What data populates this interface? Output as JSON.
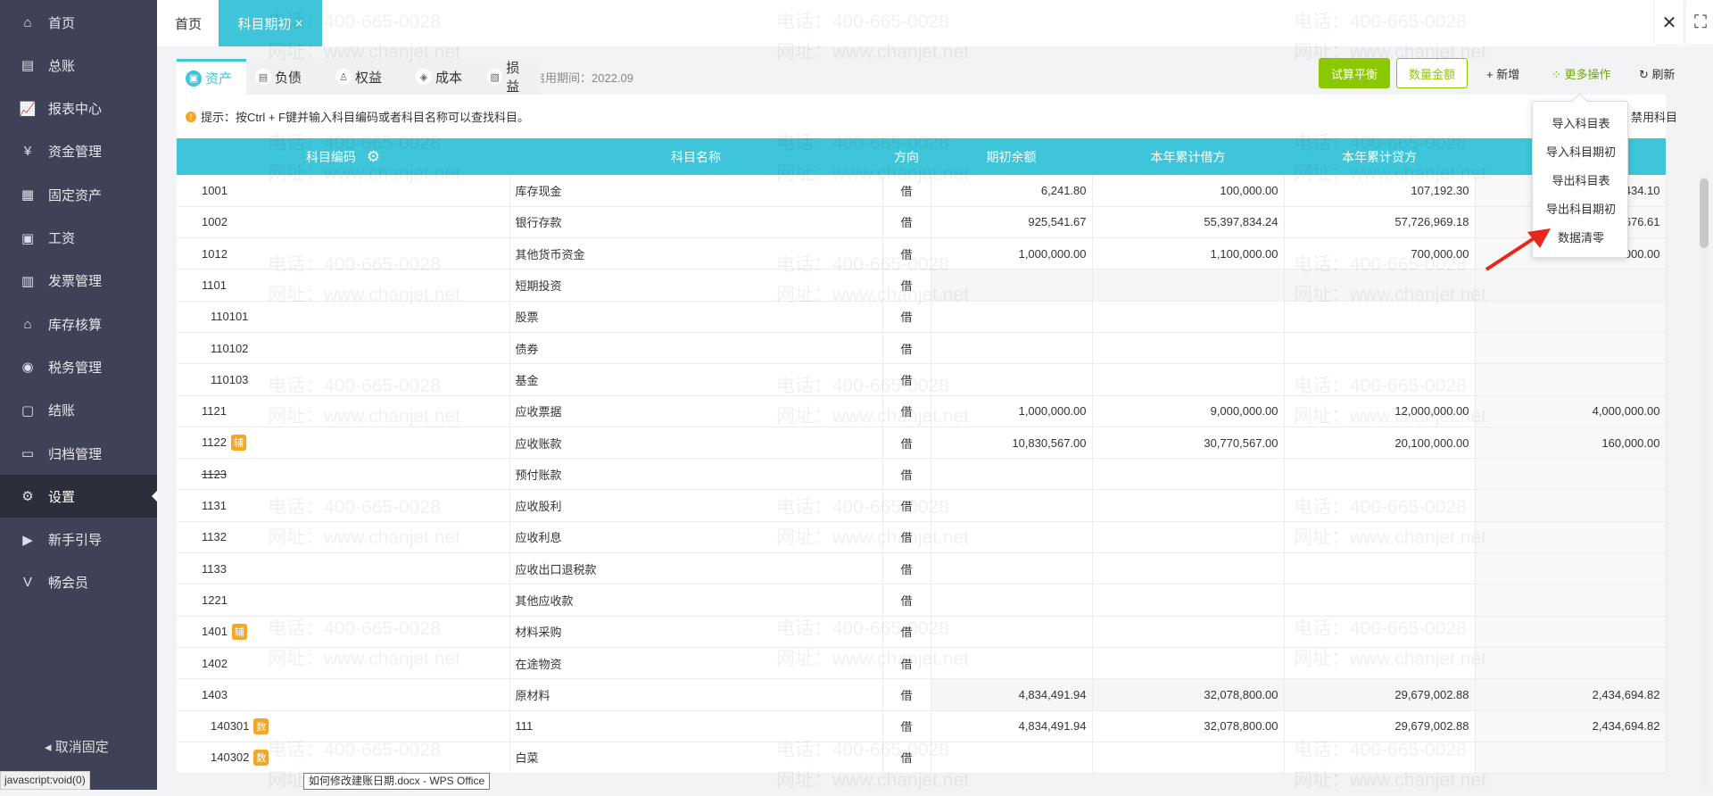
{
  "sidebar": {
    "items": [
      {
        "label": "首页",
        "icon": "home-icon",
        "glyph": "⌂"
      },
      {
        "label": "总账",
        "icon": "ledger-icon",
        "glyph": "▤"
      },
      {
        "label": "报表中心",
        "icon": "chart-icon",
        "glyph": "📈"
      },
      {
        "label": "资金管理",
        "icon": "money-bag-icon",
        "glyph": "¥"
      },
      {
        "label": "固定资产",
        "icon": "building-icon",
        "glyph": "▦"
      },
      {
        "label": "工资",
        "icon": "salary-icon",
        "glyph": "▣"
      },
      {
        "label": "发票管理",
        "icon": "invoice-icon",
        "glyph": "▥"
      },
      {
        "label": "库存核算",
        "icon": "warehouse-icon",
        "glyph": "⌂"
      },
      {
        "label": "税务管理",
        "icon": "tax-icon",
        "glyph": "◉"
      },
      {
        "label": "结账",
        "icon": "checkout-icon",
        "glyph": "▢"
      },
      {
        "label": "归档管理",
        "icon": "archive-icon",
        "glyph": "▭"
      },
      {
        "label": "设置",
        "icon": "gear-icon",
        "glyph": "⚙",
        "active": true
      },
      {
        "label": "新手引导",
        "icon": "video-icon",
        "glyph": "▶"
      },
      {
        "label": "畅会员",
        "icon": "vip-icon",
        "glyph": "V"
      }
    ],
    "unpin": "取消固定"
  },
  "tabs": {
    "home": "首页",
    "active": "科目期初",
    "close": "×"
  },
  "window": {
    "close": "✕",
    "fullscreen": "⛶"
  },
  "account_tabs": [
    {
      "label": "资产",
      "icon": "asset-icon",
      "active": true
    },
    {
      "label": "负债",
      "icon": "liability-icon"
    },
    {
      "label": "权益",
      "icon": "equity-icon"
    },
    {
      "label": "成本",
      "icon": "cost-icon"
    },
    {
      "label": "损益",
      "icon": "profit-loss-icon"
    }
  ],
  "period": "启用期间：2022.09",
  "toolbar": {
    "trial_balance": "试算平衡",
    "qty_amount": "数量金额",
    "add": "+ 新增",
    "more": "更多操作",
    "refresh": "刷新"
  },
  "hint": "提示：按Ctrl + F键并输入科目编码或者科目名称可以查找科目。",
  "disabled_label": "禁用科目",
  "dropdown": [
    "导入科目表",
    "导入科目期初",
    "导出科目表",
    "导出科目期初",
    "数据清零"
  ],
  "columns": [
    "科目编码",
    "科目名称",
    "方向",
    "期初余额",
    "本年累计借方",
    "本年累计贷方",
    ""
  ],
  "rows": [
    {
      "code": "1001",
      "name": "库存现金",
      "dir": "借",
      "bal": "6,241.80",
      "debit": "100,000.00",
      "credit": "107,192.30",
      "last": "434.10"
    },
    {
      "code": "1002",
      "name": "银行存款",
      "dir": "借",
      "bal": "925,541.67",
      "debit": "55,397,834.24",
      "credit": "57,726,969.18",
      "last": "676.61"
    },
    {
      "code": "1012",
      "name": "其他货币资金",
      "dir": "借",
      "bal": "1,000,000.00",
      "debit": "1,100,000.00",
      "credit": "700,000.00",
      "last": "000.00"
    },
    {
      "code": "1101",
      "name": "短期投资",
      "dir": "借",
      "shade": true
    },
    {
      "code": "110101",
      "name": "股票",
      "dir": "借",
      "indent": 1
    },
    {
      "code": "110102",
      "name": "债券",
      "dir": "借",
      "indent": 1
    },
    {
      "code": "110103",
      "name": "基金",
      "dir": "借",
      "indent": 1
    },
    {
      "code": "1121",
      "name": "应收票据",
      "dir": "借",
      "bal": "1,000,000.00",
      "debit": "9,000,000.00",
      "credit": "12,000,000.00",
      "last": "4,000,000.00"
    },
    {
      "code": "1122",
      "badge": "辅",
      "name": "应收账款",
      "dir": "借",
      "bal": "10,830,567.00",
      "debit": "30,770,567.00",
      "credit": "20,100,000.00",
      "last": "160,000.00"
    },
    {
      "code": "1123",
      "strike": true,
      "name": "预付账款",
      "dir": "借"
    },
    {
      "code": "1131",
      "name": "应收股利",
      "dir": "借"
    },
    {
      "code": "1132",
      "name": "应收利息",
      "dir": "借"
    },
    {
      "code": "1133",
      "name": "应收出口退税款",
      "dir": "借"
    },
    {
      "code": "1221",
      "name": "其他应收款",
      "dir": "借"
    },
    {
      "code": "1401",
      "badge": "辅",
      "name": "材料采购",
      "dir": "借"
    },
    {
      "code": "1402",
      "name": "在途物资",
      "dir": "借"
    },
    {
      "code": "1403",
      "name": "原材料",
      "dir": "借",
      "bal": "4,834,491.94",
      "debit": "32,078,800.00",
      "credit": "29,679,002.88",
      "last": "2,434,694.82",
      "shade": true
    },
    {
      "code": "140301",
      "badge": "数",
      "indent": 1,
      "name": "111",
      "dir": "借",
      "bal": "4,834,491.94",
      "debit": "32,078,800.00",
      "credit": "29,679,002.88",
      "last": "2,434,694.82"
    },
    {
      "code": "140302",
      "badge": "数",
      "indent": 1,
      "name": "白菜",
      "dir": "借"
    }
  ],
  "watermark": {
    "phone": "电话：400-665-0028",
    "site": "网址：www.chanjet.net"
  },
  "status_bar": "javascript:void(0)",
  "taskbar_tooltip": "如何修改建账日期.docx - WPS Office",
  "colors": {
    "accent": "#3ec5d9",
    "green": "#8cc800",
    "badge": "#f5a623",
    "sidebar": "#3f4156"
  }
}
